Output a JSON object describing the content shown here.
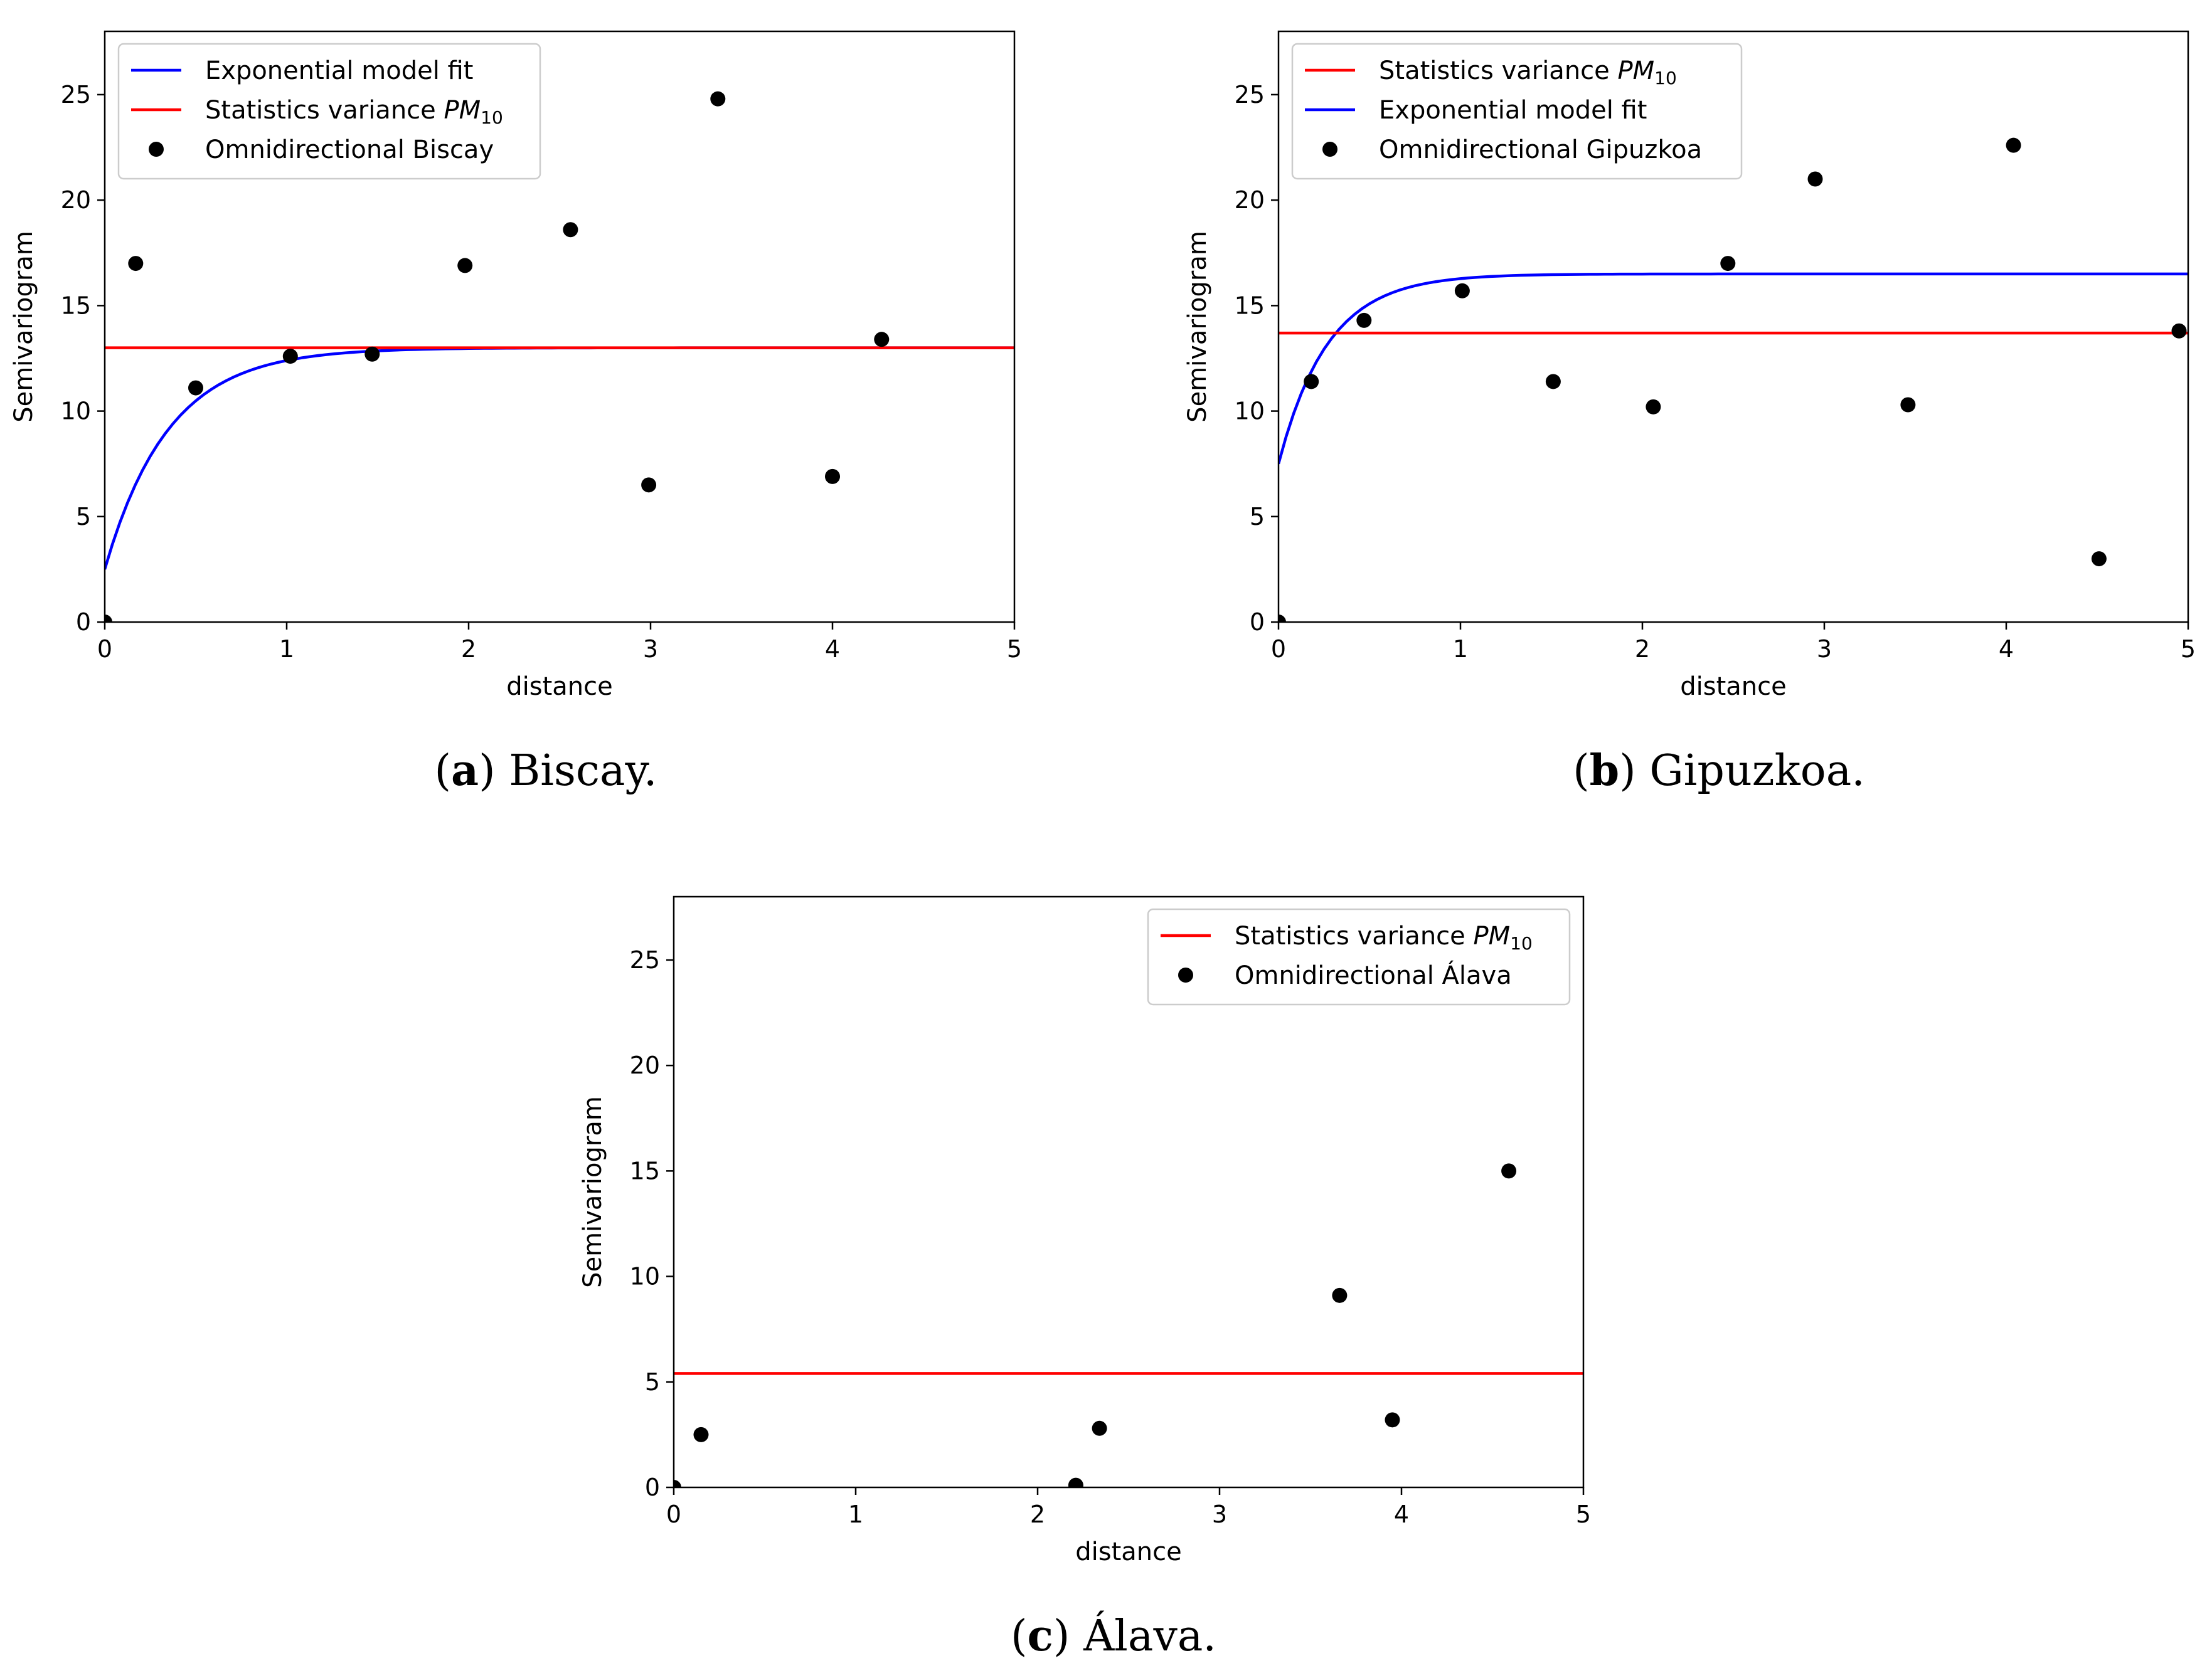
{
  "figure": {
    "panels": [
      {
        "caption_tag": "a",
        "caption_text": "Biscay."
      },
      {
        "caption_tag": "b",
        "caption_text": "Gipuzkoa."
      },
      {
        "caption_tag": "c",
        "caption_text": "Álava."
      }
    ]
  },
  "colors": {
    "model_line": "#0000ff",
    "variance_line": "#ff0000",
    "points": "#000000"
  },
  "chart_data": [
    {
      "type": "scatter",
      "title": "",
      "xlabel": "distance",
      "ylabel": "Semivariogram",
      "xlim": [
        0,
        5
      ],
      "ylim": [
        0,
        28
      ],
      "xticks": [
        0,
        1,
        2,
        3,
        4,
        5
      ],
      "yticks": [
        0,
        5,
        10,
        15,
        20,
        25
      ],
      "grid": false,
      "legend_position": "top-left",
      "legend": [
        {
          "label": "Exponential model fit",
          "kind": "line",
          "color": "#0000ff"
        },
        {
          "label": "Statistics variance ",
          "math": "PM",
          "sub": "10",
          "kind": "line",
          "color": "#ff0000"
        },
        {
          "label": "Omnidirectional Biscay",
          "kind": "point",
          "color": "#000000"
        }
      ],
      "series": [
        {
          "name": "Omnidirectional Biscay",
          "kind": "points",
          "x": [
            0.0,
            0.17,
            0.5,
            1.02,
            1.47,
            1.98,
            2.56,
            2.99,
            3.37,
            4.0,
            4.27
          ],
          "y": [
            0.0,
            17.0,
            11.1,
            12.6,
            12.7,
            16.9,
            18.6,
            6.5,
            24.8,
            6.9,
            13.4
          ]
        },
        {
          "name": "Exponential model fit",
          "kind": "exponential",
          "nugget": 2.5,
          "sill": 13.0,
          "range": 0.35
        },
        {
          "name": "Statistics variance PM10",
          "kind": "hline",
          "y": 13.0
        }
      ]
    },
    {
      "type": "scatter",
      "title": "",
      "xlabel": "distance",
      "ylabel": "Semivariogram",
      "xlim": [
        0,
        5
      ],
      "ylim": [
        0,
        28
      ],
      "xticks": [
        0,
        1,
        2,
        3,
        4,
        5
      ],
      "yticks": [
        0,
        5,
        10,
        15,
        20,
        25
      ],
      "grid": false,
      "legend_position": "top-left",
      "legend": [
        {
          "label": "Statistics variance ",
          "math": "PM",
          "sub": "10",
          "kind": "line",
          "color": "#ff0000"
        },
        {
          "label": "Exponential model fit",
          "kind": "line",
          "color": "#0000ff"
        },
        {
          "label": "Omnidirectional Gipuzkoa",
          "kind": "point",
          "color": "#000000"
        }
      ],
      "series": [
        {
          "name": "Omnidirectional Gipuzkoa",
          "kind": "points",
          "x": [
            0.0,
            0.18,
            0.47,
            1.01,
            1.51,
            2.06,
            2.47,
            2.95,
            3.46,
            4.04,
            4.51,
            4.95
          ],
          "y": [
            0.0,
            11.4,
            14.3,
            15.7,
            11.4,
            10.2,
            17.0,
            21.0,
            10.3,
            22.6,
            3.0,
            13.8
          ]
        },
        {
          "name": "Exponential model fit",
          "kind": "exponential",
          "nugget": 7.5,
          "sill": 16.5,
          "range": 0.27
        },
        {
          "name": "Statistics variance PM10",
          "kind": "hline",
          "y": 13.7
        }
      ]
    },
    {
      "type": "scatter",
      "title": "",
      "xlabel": "distance",
      "ylabel": "Semivariogram",
      "xlim": [
        0,
        5
      ],
      "ylim": [
        0,
        28
      ],
      "xticks": [
        0,
        1,
        2,
        3,
        4,
        5
      ],
      "yticks": [
        0,
        5,
        10,
        15,
        20,
        25
      ],
      "grid": false,
      "legend_position": "top-right",
      "legend": [
        {
          "label": "Statistics variance ",
          "math": "PM",
          "sub": "10",
          "kind": "line",
          "color": "#ff0000"
        },
        {
          "label": "Omnidirectional Álava",
          "kind": "point",
          "color": "#000000"
        }
      ],
      "series": [
        {
          "name": "Omnidirectional Álava",
          "kind": "points",
          "x": [
            0.0,
            0.15,
            2.21,
            2.34,
            3.66,
            3.95,
            4.59
          ],
          "y": [
            0.0,
            2.5,
            0.1,
            2.8,
            9.1,
            3.2,
            15.0
          ]
        },
        {
          "name": "Statistics variance PM10",
          "kind": "hline",
          "y": 5.4
        }
      ]
    }
  ]
}
